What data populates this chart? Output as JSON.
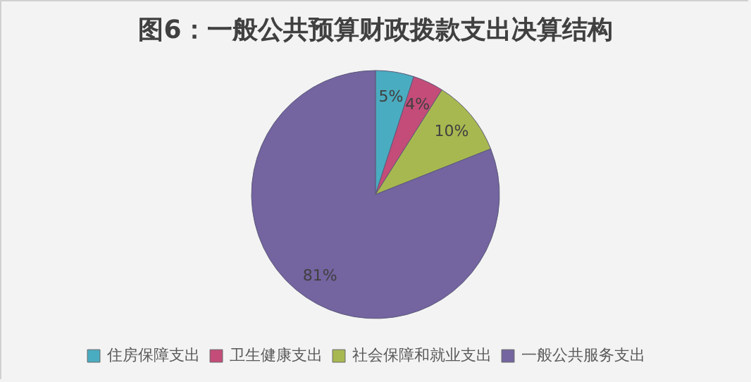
{
  "chart_data": {
    "type": "pie",
    "title": "图6：一般公共预算财政拨款支出决算结构",
    "categories": [
      "住房保障支出",
      "卫生健康支出",
      "社会保障和就业支出",
      "一般公共服务支出"
    ],
    "values": [
      5,
      4,
      10,
      81
    ],
    "value_labels": [
      "5%",
      "4%",
      "10%",
      "81%"
    ],
    "colors": [
      "#4aacc0",
      "#c44c78",
      "#a8b850",
      "#7464a0"
    ],
    "legend": "bottom"
  }
}
